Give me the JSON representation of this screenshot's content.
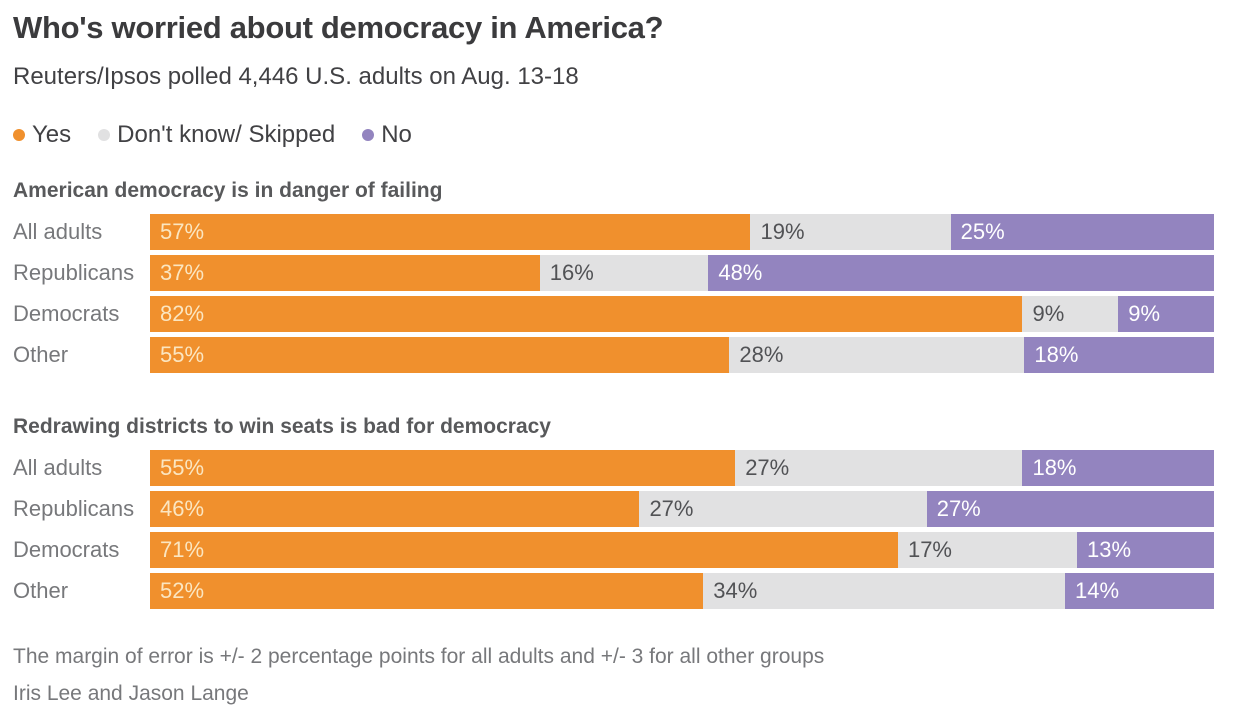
{
  "title": "Who's worried about democracy in America?",
  "subtitle": "Reuters/Ipsos polled 4,446 U.S. adults on Aug. 13-18",
  "legend": [
    {
      "label": "Yes",
      "color": "#F0902D"
    },
    {
      "label": "Don't know/ Skipped",
      "color": "#E1E1E2"
    },
    {
      "label": "No",
      "color": "#9384BF"
    }
  ],
  "colors": {
    "yes": "#F0902D",
    "dont_know": "#E1E1E2",
    "no": "#9384BF",
    "label_on_yes": "#FBE6C1",
    "label_on_dont_know": "#515255",
    "label_on_no": "#FFFFFF"
  },
  "chart_data": [
    {
      "type": "bar",
      "stacked": true,
      "orientation": "horizontal",
      "title": "American democracy is in danger of failing",
      "categories": [
        "All adults",
        "Republicans",
        "Democrats",
        "Other"
      ],
      "value_suffix": "%",
      "series": [
        {
          "name": "Yes",
          "color": "#F0902D",
          "label_color": "#FBE6C1",
          "values": [
            57,
            37,
            82,
            55
          ]
        },
        {
          "name": "Don't know/ Skipped",
          "color": "#E1E1E2",
          "label_color": "#515255",
          "values": [
            19,
            16,
            9,
            28
          ]
        },
        {
          "name": "No",
          "color": "#9384BF",
          "label_color": "#FFFFFF",
          "values": [
            25,
            48,
            9,
            18
          ]
        }
      ]
    },
    {
      "type": "bar",
      "stacked": true,
      "orientation": "horizontal",
      "title": "Redrawing districts to win seats is bad for democracy",
      "categories": [
        "All adults",
        "Republicans",
        "Democrats",
        "Other"
      ],
      "value_suffix": "%",
      "series": [
        {
          "name": "Yes",
          "color": "#F0902D",
          "label_color": "#FBE6C1",
          "values": [
            55,
            46,
            71,
            52
          ]
        },
        {
          "name": "Don't know/ Skipped",
          "color": "#E1E1E2",
          "label_color": "#515255",
          "values": [
            27,
            27,
            17,
            34
          ]
        },
        {
          "name": "No",
          "color": "#9384BF",
          "label_color": "#FFFFFF",
          "values": [
            18,
            27,
            13,
            14
          ]
        }
      ]
    }
  ],
  "footnote": "The margin of error is +/- 2 percentage points for all adults and +/- 3 for all other groups",
  "byline": "Iris Lee and Jason Lange"
}
